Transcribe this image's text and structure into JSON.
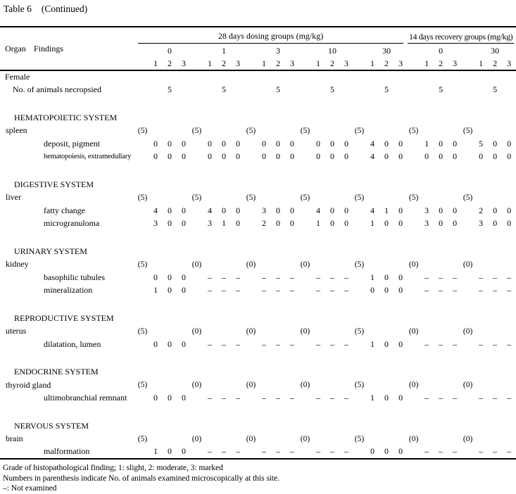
{
  "page": {
    "title": "Table 6",
    "title_suffix": "(Continued)"
  },
  "table": {
    "organ_col_label": "Organ",
    "findings_col_label": "Findings",
    "grade_columns": [
      "1",
      "2",
      "3"
    ],
    "group_sections": [
      {
        "label": "28 days dosing groups (mg/kg)",
        "doses": [
          "0",
          "1",
          "3",
          "10",
          "30"
        ]
      },
      {
        "label": "14 days recovery groups (mg/kg)",
        "doses": [
          "0",
          "30"
        ]
      }
    ],
    "sex_label": "Female",
    "necropsied_row": {
      "label": "No. of animals necropsied",
      "values": [
        "5",
        "5",
        "5",
        "5",
        "5",
        "5",
        "5"
      ]
    },
    "systems": [
      {
        "name": "HEMATOPOIETIC SYSTEM",
        "organs": [
          {
            "name": "spleen",
            "examined": [
              "(5)",
              "(5)",
              "(5)",
              "(5)",
              "(5)",
              "(5)",
              "(5)"
            ],
            "findings": [
              {
                "name": "deposit, pigment",
                "grades": [
                  [
                    "0",
                    "0",
                    "0"
                  ],
                  [
                    "0",
                    "0",
                    "0"
                  ],
                  [
                    "0",
                    "0",
                    "0"
                  ],
                  [
                    "0",
                    "0",
                    "0"
                  ],
                  [
                    "4",
                    "0",
                    "0"
                  ],
                  [
                    "1",
                    "0",
                    "0"
                  ],
                  [
                    "5",
                    "0",
                    "0"
                  ]
                ]
              },
              {
                "name": "hematopoiesis, extramedullary",
                "grades": [
                  [
                    "0",
                    "0",
                    "0"
                  ],
                  [
                    "0",
                    "0",
                    "0"
                  ],
                  [
                    "0",
                    "0",
                    "0"
                  ],
                  [
                    "0",
                    "0",
                    "0"
                  ],
                  [
                    "4",
                    "0",
                    "0"
                  ],
                  [
                    "0",
                    "0",
                    "0"
                  ],
                  [
                    "0",
                    "0",
                    "0"
                  ]
                ]
              }
            ]
          }
        ]
      },
      {
        "name": "DIGESTIVE SYSTEM",
        "organs": [
          {
            "name": "liver",
            "examined": [
              "(5)",
              "(5)",
              "(5)",
              "(5)",
              "(5)",
              "(5)",
              "(5)"
            ],
            "findings": [
              {
                "name": "fatty change",
                "grades": [
                  [
                    "4",
                    "0",
                    "0"
                  ],
                  [
                    "4",
                    "0",
                    "0"
                  ],
                  [
                    "3",
                    "0",
                    "0"
                  ],
                  [
                    "4",
                    "0",
                    "0"
                  ],
                  [
                    "4",
                    "1",
                    "0"
                  ],
                  [
                    "3",
                    "0",
                    "0"
                  ],
                  [
                    "2",
                    "0",
                    "0"
                  ]
                ]
              },
              {
                "name": "microgranuloma",
                "grades": [
                  [
                    "3",
                    "0",
                    "0"
                  ],
                  [
                    "3",
                    "1",
                    "0"
                  ],
                  [
                    "2",
                    "0",
                    "0"
                  ],
                  [
                    "1",
                    "0",
                    "0"
                  ],
                  [
                    "1",
                    "0",
                    "0"
                  ],
                  [
                    "3",
                    "0",
                    "0"
                  ],
                  [
                    "3",
                    "0",
                    "0"
                  ]
                ]
              }
            ]
          }
        ]
      },
      {
        "name": "URINARY SYSTEM",
        "organs": [
          {
            "name": "kidney",
            "examined": [
              "(5)",
              "(0)",
              "(0)",
              "(0)",
              "(5)",
              "(0)",
              "(0)"
            ],
            "findings": [
              {
                "name": "basophilic tubules",
                "grades": [
                  [
                    "0",
                    "0",
                    "0"
                  ],
                  [
                    "–",
                    "–",
                    "–"
                  ],
                  [
                    "–",
                    "–",
                    "–"
                  ],
                  [
                    "–",
                    "–",
                    "–"
                  ],
                  [
                    "1",
                    "0",
                    "0"
                  ],
                  [
                    "–",
                    "–",
                    "–"
                  ],
                  [
                    "–",
                    "–",
                    "–"
                  ]
                ]
              },
              {
                "name": "mineralization",
                "grades": [
                  [
                    "1",
                    "0",
                    "0"
                  ],
                  [
                    "–",
                    "–",
                    "–"
                  ],
                  [
                    "–",
                    "–",
                    "–"
                  ],
                  [
                    "–",
                    "–",
                    "–"
                  ],
                  [
                    "0",
                    "0",
                    "0"
                  ],
                  [
                    "–",
                    "–",
                    "–"
                  ],
                  [
                    "–",
                    "–",
                    "–"
                  ]
                ]
              }
            ]
          }
        ]
      },
      {
        "name": "REPRODUCTIVE SYSTEM",
        "organs": [
          {
            "name": "uterus",
            "examined": [
              "(5)",
              "(0)",
              "(0)",
              "(0)",
              "(5)",
              "(0)",
              "(0)"
            ],
            "findings": [
              {
                "name": "dilatation, lumen",
                "grades": [
                  [
                    "0",
                    "0",
                    "0"
                  ],
                  [
                    "–",
                    "–",
                    "–"
                  ],
                  [
                    "–",
                    "–",
                    "–"
                  ],
                  [
                    "–",
                    "–",
                    "–"
                  ],
                  [
                    "1",
                    "0",
                    "0"
                  ],
                  [
                    "–",
                    "–",
                    "–"
                  ],
                  [
                    "–",
                    "–",
                    "–"
                  ]
                ]
              }
            ]
          }
        ]
      },
      {
        "name": "ENDOCRINE SYSTEM",
        "organs": [
          {
            "name": "thyroid gland",
            "examined": [
              "(5)",
              "(0)",
              "(0)",
              "(0)",
              "(5)",
              "(0)",
              "(0)"
            ],
            "findings": [
              {
                "name": "ultimobranchial remnant",
                "grades": [
                  [
                    "0",
                    "0",
                    "0"
                  ],
                  [
                    "–",
                    "–",
                    "–"
                  ],
                  [
                    "–",
                    "–",
                    "–"
                  ],
                  [
                    "–",
                    "–",
                    "–"
                  ],
                  [
                    "1",
                    "0",
                    "0"
                  ],
                  [
                    "–",
                    "–",
                    "–"
                  ],
                  [
                    "–",
                    "–",
                    "–"
                  ]
                ]
              }
            ]
          }
        ]
      },
      {
        "name": "NERVOUS SYSTEM",
        "organs": [
          {
            "name": "brain",
            "examined": [
              "(5)",
              "(0)",
              "(0)",
              "(0)",
              "(5)",
              "(0)",
              "(0)"
            ],
            "findings": [
              {
                "name": "malformation",
                "grades": [
                  [
                    "1",
                    "0",
                    "0"
                  ],
                  [
                    "–",
                    "–",
                    "–"
                  ],
                  [
                    "–",
                    "–",
                    "–"
                  ],
                  [
                    "–",
                    "–",
                    "–"
                  ],
                  [
                    "0",
                    "0",
                    "0"
                  ],
                  [
                    "–",
                    "–",
                    "–"
                  ],
                  [
                    "–",
                    "–",
                    "–"
                  ]
                ]
              }
            ]
          }
        ]
      }
    ],
    "footnotes": [
      "Grade of histopathological finding; 1: slight, 2: moderate, 3: marked",
      "Numbers in parenthesis indicate No. of animals examined microscopically at this site.",
      "–: Not examined"
    ]
  }
}
